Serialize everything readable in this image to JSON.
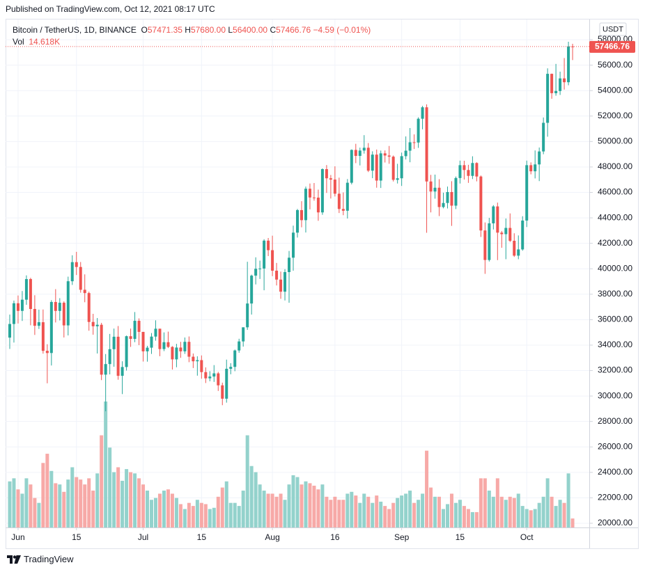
{
  "header": {
    "published": "Published on TradingView.com, Oct 12, 2021 08:17 UTC"
  },
  "footer": {
    "brand": "TradingView"
  },
  "chart_data": {
    "type": "candlestick",
    "legend": {
      "symbol": "Bitcoin / TetherUS, 1D, BINANCE",
      "open_label": "O",
      "open": "57471.35",
      "high_label": "H",
      "high": "57680.00",
      "low_label": "L",
      "low": "56400.00",
      "close_label": "C",
      "close": "57466.76",
      "change": "−4.59 (−0.01%)",
      "volume_label": "Vol",
      "volume": "14.618K"
    },
    "currency": "USDT",
    "up_color": "#26a69a",
    "down_color": "#ef5350",
    "volume_up_color": "#93d2cc",
    "volume_down_color": "#f7a9a7",
    "grid": true,
    "xlim": [
      "2021-05-29",
      "2021-10-16"
    ],
    "ylim": [
      19670,
      59590
    ],
    "xticks": [
      {
        "value": "2021-06-01",
        "label": "Jun"
      },
      {
        "value": "2021-06-15",
        "label": "15"
      },
      {
        "value": "2021-07-01",
        "label": "Jul"
      },
      {
        "value": "2021-07-15",
        "label": "15"
      },
      {
        "value": "2021-08-01",
        "label": "Aug"
      },
      {
        "value": "2021-08-16",
        "label": "16"
      },
      {
        "value": "2021-09-01",
        "label": "Sep"
      },
      {
        "value": "2021-09-15",
        "label": "15"
      },
      {
        "value": "2021-10-01",
        "label": "Oct"
      }
    ],
    "yticks": [
      {
        "value": 20000,
        "label": "20000.00"
      },
      {
        "value": 22000,
        "label": "22000.00"
      },
      {
        "value": 24000,
        "label": "24000.00"
      },
      {
        "value": 26000,
        "label": "26000.00"
      },
      {
        "value": 28000,
        "label": "28000.00"
      },
      {
        "value": 30000,
        "label": "30000.00"
      },
      {
        "value": 32000,
        "label": "32000.00"
      },
      {
        "value": 34000,
        "label": "34000.00"
      },
      {
        "value": 36000,
        "label": "36000.00"
      },
      {
        "value": 38000,
        "label": "38000.00"
      },
      {
        "value": 40000,
        "label": "40000.00"
      },
      {
        "value": 42000,
        "label": "42000.00"
      },
      {
        "value": 44000,
        "label": "44000.00"
      },
      {
        "value": 46000,
        "label": "46000.00"
      },
      {
        "value": 48000,
        "label": "48000.00"
      },
      {
        "value": 50000,
        "label": "50000.00"
      },
      {
        "value": 52000,
        "label": "52000.00"
      },
      {
        "value": 54000,
        "label": "54000.00"
      },
      {
        "value": 56000,
        "label": "56000.00"
      },
      {
        "value": 58000,
        "label": "58000.00"
      }
    ],
    "last_price": {
      "value": 57466.76,
      "label": "57466.76"
    },
    "x": [
      "2021-05-30",
      "2021-05-31",
      "2021-06-01",
      "2021-06-02",
      "2021-06-03",
      "2021-06-04",
      "2021-06-05",
      "2021-06-06",
      "2021-06-07",
      "2021-06-08",
      "2021-06-09",
      "2021-06-10",
      "2021-06-11",
      "2021-06-12",
      "2021-06-13",
      "2021-06-14",
      "2021-06-15",
      "2021-06-16",
      "2021-06-17",
      "2021-06-18",
      "2021-06-19",
      "2021-06-20",
      "2021-06-21",
      "2021-06-22",
      "2021-06-23",
      "2021-06-24",
      "2021-06-25",
      "2021-06-26",
      "2021-06-27",
      "2021-06-28",
      "2021-06-29",
      "2021-06-30",
      "2021-07-01",
      "2021-07-02",
      "2021-07-03",
      "2021-07-04",
      "2021-07-05",
      "2021-07-06",
      "2021-07-07",
      "2021-07-08",
      "2021-07-09",
      "2021-07-10",
      "2021-07-11",
      "2021-07-12",
      "2021-07-13",
      "2021-07-14",
      "2021-07-15",
      "2021-07-16",
      "2021-07-17",
      "2021-07-18",
      "2021-07-19",
      "2021-07-20",
      "2021-07-21",
      "2021-07-22",
      "2021-07-23",
      "2021-07-24",
      "2021-07-25",
      "2021-07-26",
      "2021-07-27",
      "2021-07-28",
      "2021-07-29",
      "2021-07-30",
      "2021-07-31",
      "2021-08-01",
      "2021-08-02",
      "2021-08-03",
      "2021-08-04",
      "2021-08-05",
      "2021-08-06",
      "2021-08-07",
      "2021-08-08",
      "2021-08-09",
      "2021-08-10",
      "2021-08-11",
      "2021-08-12",
      "2021-08-13",
      "2021-08-14",
      "2021-08-15",
      "2021-08-16",
      "2021-08-17",
      "2021-08-18",
      "2021-08-19",
      "2021-08-20",
      "2021-08-21",
      "2021-08-22",
      "2021-08-23",
      "2021-08-24",
      "2021-08-25",
      "2021-08-26",
      "2021-08-27",
      "2021-08-28",
      "2021-08-29",
      "2021-08-30",
      "2021-08-31",
      "2021-09-01",
      "2021-09-02",
      "2021-09-03",
      "2021-09-04",
      "2021-09-05",
      "2021-09-06",
      "2021-09-07",
      "2021-09-08",
      "2021-09-09",
      "2021-09-10",
      "2021-09-11",
      "2021-09-12",
      "2021-09-13",
      "2021-09-14",
      "2021-09-15",
      "2021-09-16",
      "2021-09-17",
      "2021-09-18",
      "2021-09-19",
      "2021-09-20",
      "2021-09-21",
      "2021-09-22",
      "2021-09-23",
      "2021-09-24",
      "2021-09-25",
      "2021-09-26",
      "2021-09-27",
      "2021-09-28",
      "2021-09-29",
      "2021-09-30",
      "2021-10-01",
      "2021-10-02",
      "2021-10-03",
      "2021-10-04",
      "2021-10-05",
      "2021-10-06",
      "2021-10-07",
      "2021-10-08",
      "2021-10-09",
      "2021-10-10",
      "2021-10-11",
      "2021-10-12"
    ],
    "open": [
      34590,
      35660,
      37290,
      36690,
      37570,
      39190,
      36840,
      35520,
      35800,
      33550,
      33380,
      37390,
      36690,
      37330,
      35550,
      39020,
      40520,
      40140,
      38350,
      38090,
      35820,
      35480,
      35600,
      31680,
      32510,
      33680,
      34660,
      31590,
      32280,
      34700,
      34490,
      35910,
      35040,
      33510,
      33800,
      34670,
      35290,
      33690,
      34230,
      33860,
      32880,
      33810,
      33510,
      34260,
      33090,
      32730,
      32820,
      31880,
      31390,
      31530,
      31780,
      30840,
      29790,
      32140,
      32290,
      33580,
      34290,
      35400,
      37270,
      39460,
      40000,
      40020,
      42210,
      41460,
      39850,
      39150,
      38200,
      39740,
      40870,
      42840,
      44610,
      43820,
      46290,
      45600,
      45590,
      44430,
      47830,
      47110,
      47010,
      45900,
      44700,
      44560,
      46760,
      49340,
      48870,
      49290,
      49510,
      47710,
      48970,
      46930,
      49070,
      48900,
      48810,
      46990,
      47110,
      48850,
      49280,
      49940,
      49920,
      51790,
      52690,
      46860,
      46070,
      46370,
      44850,
      45170,
      46030,
      44960,
      47130,
      48140,
      47760,
      47300,
      48310,
      47250,
      43010,
      40690,
      43570,
      44900,
      42840,
      42720,
      43210,
      42200,
      41030,
      41520,
      43790,
      48140,
      47660,
      48200,
      49220,
      51470,
      55320,
      53800,
      53970,
      54960,
      54660,
      57471.35
    ],
    "high": [
      36400,
      37500,
      37900,
      38250,
      39480,
      39290,
      37920,
      36790,
      36800,
      34070,
      37530,
      38400,
      37690,
      37440,
      39380,
      41060,
      41330,
      40530,
      39560,
      38200,
      36460,
      36130,
      35750,
      33300,
      34880,
      35300,
      35500,
      32730,
      34750,
      35300,
      36600,
      36100,
      35040,
      33940,
      34950,
      35950,
      35290,
      35000,
      35060,
      33920,
      34100,
      34260,
      34600,
      34680,
      33340,
      33120,
      33190,
      32250,
      31950,
      32430,
      31900,
      31050,
      32860,
      32580,
      33650,
      34500,
      35400,
      40550,
      39540,
      40900,
      40640,
      42320,
      42420,
      42600,
      40460,
      39780,
      39970,
      41400,
      43390,
      44700,
      45310,
      46460,
      46700,
      46740,
      46220,
      47890,
      48150,
      47370,
      48050,
      47160,
      46000,
      47050,
      49380,
      49820,
      49520,
      50500,
      49880,
      49230,
      49370,
      49290,
      49300,
      49650,
      48900,
      48250,
      49130,
      50400,
      51060,
      50560,
      51900,
      52800,
      52920,
      47380,
      47400,
      47040,
      45980,
      46460,
      46880,
      47250,
      48500,
      48490,
      48170,
      48840,
      48370,
      47330,
      43640,
      44000,
      45000,
      45200,
      42970,
      43950,
      44350,
      42790,
      42620,
      44130,
      48500,
      48360,
      49300,
      49530,
      51890,
      55750,
      55340,
      56100,
      55490,
      56560,
      57840,
      57680
    ],
    "low": [
      33700,
      34200,
      35700,
      35900,
      37170,
      35560,
      34800,
      35270,
      33330,
      31000,
      32400,
      35780,
      35940,
      34600,
      34760,
      38730,
      39510,
      38120,
      37370,
      35130,
      34820,
      33340,
      31250,
      28800,
      31700,
      32300,
      31280,
      30150,
      32000,
      33860,
      34230,
      34000,
      32710,
      32700,
      33310,
      34350,
      33130,
      33530,
      33770,
      32080,
      32260,
      33000,
      33310,
      32660,
      32200,
      31600,
      31360,
      31020,
      31160,
      31110,
      30400,
      29280,
      29480,
      31710,
      31950,
      33400,
      33880,
      35200,
      36400,
      38770,
      39200,
      38310,
      41000,
      39420,
      38690,
      37640,
      37510,
      37330,
      39850,
      42450,
      43260,
      42850,
      44670,
      45350,
      43770,
      44240,
      45960,
      45520,
      45680,
      44380,
      44210,
      43950,
      46630,
      48300,
      48120,
      49050,
      47600,
      47120,
      46370,
      46350,
      48350,
      48250,
      46860,
      46700,
      46510,
      48590,
      48370,
      49410,
      49500,
      50960,
      42830,
      44430,
      45510,
      44140,
      44750,
      44740,
      43370,
      44690,
      46700,
      47010,
      46750,
      47050,
      46870,
      42500,
      39600,
      40570,
      43090,
      40680,
      41650,
      40750,
      42100,
      40930,
      40750,
      41420,
      43280,
      47420,
      47100,
      46890,
      49000,
      50380,
      53360,
      53600,
      53660,
      54080,
      54420,
      56400
    ],
    "close": [
      35660,
      37290,
      36690,
      37570,
      39190,
      36840,
      35520,
      35800,
      33550,
      33380,
      37390,
      36690,
      37330,
      35550,
      39020,
      40520,
      40140,
      38350,
      38090,
      35820,
      35480,
      35600,
      31680,
      32510,
      33680,
      34660,
      31590,
      32280,
      34700,
      34490,
      35910,
      35040,
      33510,
      33800,
      34670,
      35290,
      33690,
      34230,
      33860,
      32880,
      33810,
      33510,
      34260,
      33090,
      32730,
      32820,
      31880,
      31390,
      31530,
      31780,
      30840,
      29790,
      32140,
      32290,
      33580,
      34290,
      35400,
      37270,
      39460,
      40000,
      40020,
      42210,
      41460,
      39850,
      39150,
      38200,
      39740,
      40870,
      42840,
      44610,
      43820,
      46290,
      45600,
      45590,
      44430,
      47830,
      47110,
      47010,
      45900,
      44700,
      44560,
      46760,
      49340,
      48870,
      49290,
      49510,
      47710,
      48970,
      46930,
      49070,
      48900,
      48810,
      46990,
      47110,
      48850,
      49280,
      49940,
      49920,
      51790,
      52690,
      46860,
      46070,
      46370,
      44850,
      45170,
      46030,
      44960,
      47130,
      48140,
      47760,
      47300,
      48310,
      47250,
      43010,
      40690,
      43570,
      44900,
      42840,
      42720,
      43210,
      42200,
      41030,
      41520,
      43790,
      48140,
      47660,
      48200,
      49220,
      51470,
      55320,
      53800,
      53970,
      54960,
      54660,
      57471.35,
      57466.76
    ],
    "volume": [
      75,
      80,
      62,
      55,
      80,
      70,
      48,
      40,
      105,
      120,
      92,
      72,
      70,
      58,
      78,
      98,
      82,
      78,
      70,
      80,
      60,
      88,
      150,
      205,
      130,
      90,
      98,
      76,
      95,
      90,
      88,
      80,
      70,
      60,
      45,
      48,
      55,
      60,
      62,
      55,
      48,
      38,
      30,
      40,
      35,
      45,
      40,
      38,
      30,
      32,
      50,
      65,
      75,
      40,
      40,
      35,
      60,
      150,
      100,
      90,
      70,
      60,
      55,
      55,
      50,
      55,
      45,
      70,
      85,
      82,
      70,
      75,
      72,
      68,
      62,
      70,
      50,
      45,
      50,
      45,
      45,
      55,
      58,
      52,
      40,
      55,
      50,
      40,
      52,
      42,
      35,
      30,
      40,
      48,
      52,
      55,
      60,
      40,
      45,
      55,
      125,
      65,
      50,
      50,
      30,
      38,
      55,
      40,
      45,
      35,
      30,
      25,
      25,
      80,
      80,
      60,
      50,
      80,
      50,
      45,
      50,
      48,
      55,
      35,
      30,
      28,
      30,
      40,
      50,
      80,
      50,
      35,
      45,
      40,
      88,
      14.618
    ]
  }
}
